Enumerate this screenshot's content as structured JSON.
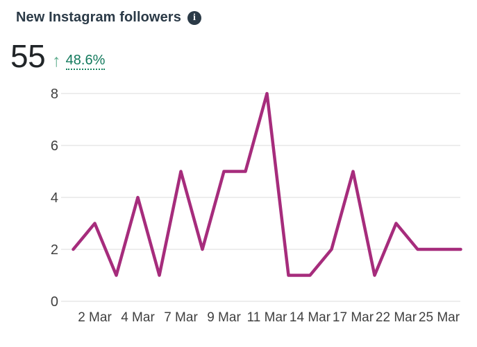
{
  "header": {
    "title": "New Instagram followers",
    "info_glyph": "i"
  },
  "kpi": {
    "value": "55",
    "trend_direction": "up",
    "trend_arrow": "↑",
    "change_percent": "48.6%"
  },
  "colors": {
    "line": "#A62C7C",
    "title": "#2B3A47",
    "kpi_value": "#212528",
    "positive_text": "#12795C",
    "positive_arrow": "#5FAD8E",
    "gridline": "#E2E2E2",
    "axis_label": "#404040",
    "background": "#FFFFFF"
  },
  "chart_data": {
    "type": "line",
    "title": "New Instagram followers",
    "series": [
      {
        "name": "New Instagram followers",
        "values": [
          2,
          3,
          1,
          4,
          1,
          5,
          2,
          5,
          5,
          8,
          1,
          1,
          2,
          5,
          1,
          3,
          2,
          2,
          2
        ]
      }
    ],
    "points_total": 55,
    "x_tick_labels": [
      "2 Mar",
      "4 Mar",
      "7 Mar",
      "9 Mar",
      "11 Mar",
      "14 Mar",
      "17 Mar",
      "22 Mar",
      "25 Mar"
    ],
    "x_tick_point_indices": [
      1,
      3,
      5,
      7,
      9,
      11,
      13,
      15,
      17
    ],
    "y_ticks": [
      0,
      2,
      4,
      6,
      8
    ],
    "ylim": [
      0,
      8
    ],
    "grid": "horizontal",
    "legend": "none",
    "line_color": "#A62C7C"
  }
}
